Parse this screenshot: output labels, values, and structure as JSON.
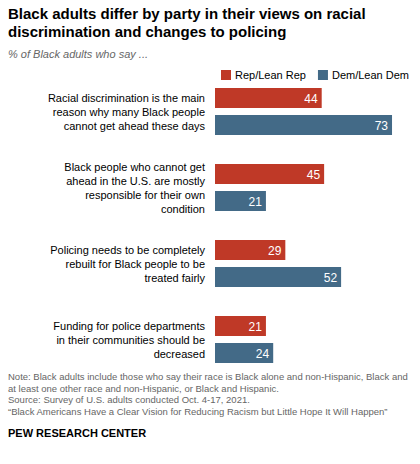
{
  "chart_data": {
    "type": "bar",
    "orientation": "horizontal",
    "title": "Black adults differ by party in their views on racial discrimination and changes to policing",
    "subtitle": "% of Black adults who say ...",
    "categories": [
      "Racial discrimination is the main reason why many Black people cannot get ahead these days",
      "Black people who cannot get ahead in the U.S. are mostly responsible for their own condition",
      "Policing needs to be completely rebuilt for Black people to be treated fairly",
      "Funding for police departments in their communities should be decreased"
    ],
    "series": [
      {
        "name": "Rep/Lean Rep",
        "color": "#bf3927",
        "values": [
          44,
          45,
          29,
          21
        ]
      },
      {
        "name": "Dem/Lean Dem",
        "color": "#436a87",
        "values": [
          73,
          21,
          52,
          24
        ]
      }
    ],
    "xlim": [
      0,
      80
    ],
    "tick_labels": false,
    "data_labels": true,
    "legend": "top",
    "grid": false,
    "note": "Note: Black adults include those who say their race is Black alone and non-Hispanic, Black and at least one other race and non-Hispanic, or Black and Hispanic.",
    "source": "Source: Survey of U.S. adults conducted Oct. 4-17, 2021.",
    "source_title": "“Black Americans Have a Clear Vision for Reducing Racism but Little Hope It Will Happen”",
    "credit": "PEW RESEARCH CENTER"
  }
}
